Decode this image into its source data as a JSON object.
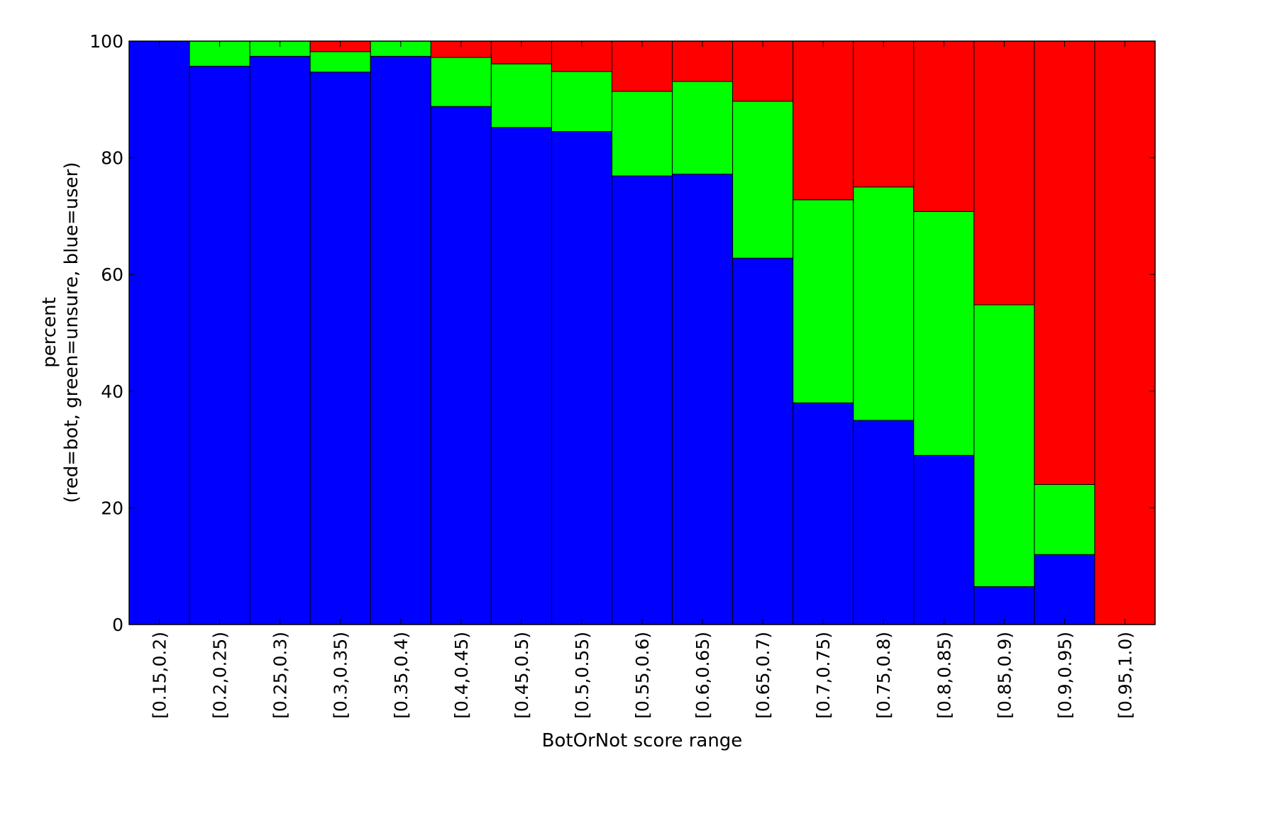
{
  "chart_data": {
    "type": "bar",
    "stacked": true,
    "title": "",
    "xlabel": "BotOrNot score range",
    "ylabel_lines": [
      "percent",
      "(red=bot, green=unsure, blue=user)"
    ],
    "ylim": [
      0,
      100
    ],
    "yticks": [
      0,
      20,
      40,
      60,
      80,
      100
    ],
    "grid": false,
    "categories": [
      "[0.15,0.2)",
      "[0.2,0.25)",
      "[0.25,0.3)",
      "[0.3,0.35)",
      "[0.35,0.4)",
      "[0.4,0.45)",
      "[0.45,0.5)",
      "[0.5,0.55)",
      "[0.55,0.6)",
      "[0.6,0.65)",
      "[0.65,0.7)",
      "[0.7,0.75)",
      "[0.75,0.8)",
      "[0.8,0.85)",
      "[0.85,0.9)",
      "[0.9,0.95)",
      "[0.95,1.0)"
    ],
    "series": [
      {
        "name": "user",
        "color": "#0000ff",
        "values": [
          100,
          95.7,
          97.4,
          94.7,
          97.4,
          88.8,
          85.2,
          84.5,
          76.9,
          77.2,
          62.8,
          38.0,
          35.0,
          29.0,
          6.5,
          12.0,
          0
        ]
      },
      {
        "name": "unsure",
        "color": "#00ff00",
        "values": [
          0,
          4.3,
          2.6,
          3.5,
          2.6,
          8.4,
          10.9,
          10.3,
          14.5,
          15.9,
          26.9,
          34.8,
          40.0,
          41.8,
          48.3,
          12.0,
          0
        ]
      },
      {
        "name": "bot",
        "color": "#ff0000",
        "values": [
          0,
          0,
          0,
          1.8,
          0,
          2.8,
          3.9,
          5.2,
          8.6,
          6.9,
          10.3,
          27.2,
          25.0,
          29.2,
          45.2,
          76.0,
          100
        ]
      }
    ]
  }
}
